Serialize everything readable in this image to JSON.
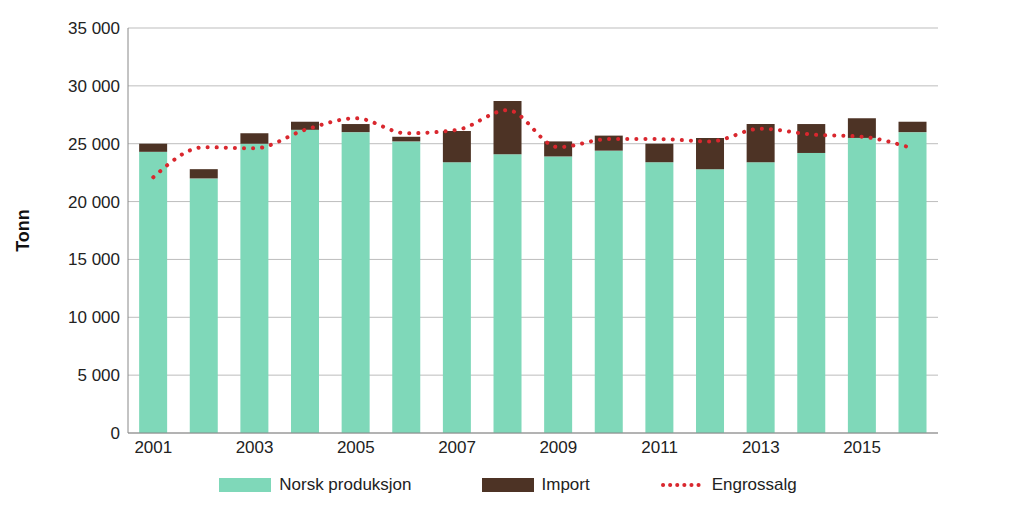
{
  "chart_data": {
    "type": "bar",
    "stacked": true,
    "grid": true,
    "legend": "bottom",
    "y_label": "Tonn",
    "categories": [
      "2001",
      null,
      "2003",
      null,
      "2005",
      null,
      "2007",
      null,
      "2009",
      null,
      "2011",
      null,
      "2013",
      null,
      "2015",
      null
    ],
    "ylim": [
      0,
      35000
    ],
    "yticks": [
      0,
      {
        "value": 5000,
        "label": "5 000"
      },
      {
        "value": 10000,
        "label": "10 000"
      },
      {
        "value": 15000,
        "label": "15 000"
      },
      {
        "value": 20000,
        "label": "20 000"
      },
      {
        "value": 25000,
        "label": "25 000"
      },
      {
        "value": 30000,
        "label": "30 000"
      },
      {
        "value": 35000,
        "label": "35 000"
      }
    ],
    "series": [
      {
        "name": "Norsk produksjon",
        "type": "bar",
        "color": "#7fd8b9",
        "values": [
          24300,
          22000,
          25000,
          26200,
          26000,
          25200,
          23400,
          24100,
          23900,
          24400,
          23400,
          22800,
          23400,
          24200,
          25500,
          26000
        ]
      },
      {
        "name": "Import",
        "type": "bar",
        "color": "#4d3325",
        "values": [
          700,
          800,
          900,
          700,
          700,
          400,
          2700,
          4600,
          1300,
          1300,
          1600,
          2700,
          3300,
          2500,
          1700,
          900
        ]
      },
      {
        "name": "Engrossalg",
        "type": "line",
        "color": "#d9272e",
        "line_style": "dotted",
        "values": [
          22100,
          24700,
          24600,
          26200,
          27200,
          25900,
          26200,
          27900,
          24700,
          25400,
          25400,
          25200,
          26300,
          25800,
          25600,
          24600
        ]
      }
    ]
  }
}
